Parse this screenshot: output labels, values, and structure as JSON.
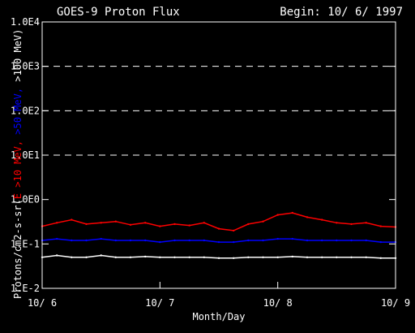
{
  "chart_data": {
    "type": "line",
    "title": "GOES-9 Proton Flux",
    "begin_label": "Begin: 10/ 6/ 1997",
    "xlabel": "Month/Day",
    "ylabel_parts": [
      {
        "text": "Protons/cm2-s-sr(",
        "color": "#ffffff"
      },
      {
        "text": "E >10 MeV, ",
        "color": "#ff0000"
      },
      {
        "text": ">50 MeV, ",
        "color": "#0000ff"
      },
      {
        "text": ">100 MeV)",
        "color": "#ffffff"
      }
    ],
    "y_scale": "log",
    "ylim": [
      0.01,
      10000
    ],
    "y_ticks": [
      {
        "value": 0.01,
        "label": "1.E-2"
      },
      {
        "value": 0.1,
        "label": "1.E-1"
      },
      {
        "value": 1,
        "label": "1.0E0"
      },
      {
        "value": 10,
        "label": "1.0E1"
      },
      {
        "value": 100,
        "label": "1.0E2"
      },
      {
        "value": 1000,
        "label": "1.0E3"
      },
      {
        "value": 10000,
        "label": "1.0E4"
      }
    ],
    "grid": "dashed horizontal at decades",
    "xlim": [
      "10/6",
      "10/9"
    ],
    "x_ticks": [
      {
        "value": "10/6",
        "label": "10/ 6"
      },
      {
        "value": "10/7",
        "label": "10/ 7"
      },
      {
        "value": "10/8",
        "label": "10/ 8"
      },
      {
        "value": "10/9",
        "label": "10/ 9"
      }
    ],
    "x": [
      "10/6 00:00",
      "10/6 03:00",
      "10/6 06:00",
      "10/6 09:00",
      "10/6 12:00",
      "10/6 15:00",
      "10/6 18:00",
      "10/6 21:00",
      "10/7 00:00",
      "10/7 03:00",
      "10/7 06:00",
      "10/7 09:00",
      "10/7 12:00",
      "10/7 15:00",
      "10/7 18:00",
      "10/7 21:00",
      "10/8 00:00",
      "10/8 03:00",
      "10/8 06:00",
      "10/8 09:00",
      "10/8 12:00",
      "10/8 15:00",
      "10/8 18:00",
      "10/8 21:00",
      "10/9 00:00"
    ],
    "series": [
      {
        "color": "#ff0000",
        "values": [
          0.25,
          0.3,
          0.35,
          0.28,
          0.3,
          0.32,
          0.27,
          0.3,
          0.25,
          0.28,
          0.26,
          0.3,
          0.22,
          0.2,
          0.28,
          0.32,
          0.45,
          0.5,
          0.4,
          0.35,
          0.3,
          0.28,
          0.3,
          0.25,
          0.24
        ]
      },
      {
        "color": "#0000ff",
        "values": [
          0.12,
          0.13,
          0.12,
          0.12,
          0.13,
          0.12,
          0.12,
          0.12,
          0.11,
          0.12,
          0.12,
          0.12,
          0.11,
          0.11,
          0.12,
          0.12,
          0.13,
          0.13,
          0.12,
          0.12,
          0.12,
          0.12,
          0.12,
          0.11,
          0.11
        ]
      },
      {
        "color": "#ffffff",
        "values": [
          0.05,
          0.055,
          0.05,
          0.05,
          0.055,
          0.05,
          0.05,
          0.052,
          0.05,
          0.05,
          0.05,
          0.05,
          0.048,
          0.048,
          0.05,
          0.05,
          0.05,
          0.052,
          0.05,
          0.05,
          0.05,
          0.05,
          0.05,
          0.048,
          0.048
        ]
      }
    ]
  }
}
